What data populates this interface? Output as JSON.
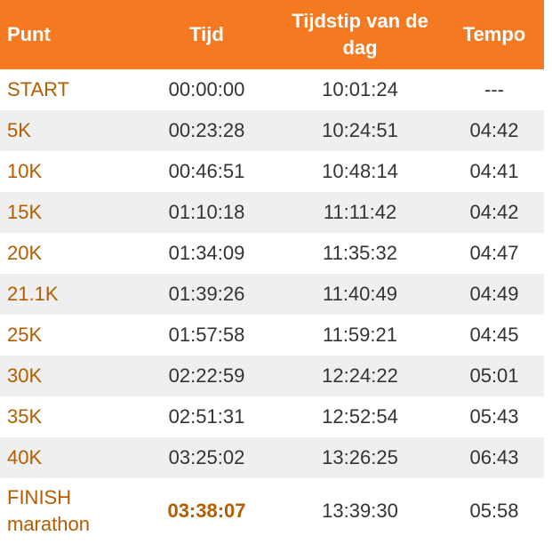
{
  "table": {
    "header": [
      "Punt",
      "Tijd",
      "Tijdstip van de dag",
      "Tempo"
    ],
    "rows": [
      [
        "START",
        "00:00:00",
        "10:01:24",
        "---"
      ],
      [
        "5K",
        "00:23:28",
        "10:24:51",
        "04:42"
      ],
      [
        "10K",
        "00:46:51",
        "10:48:14",
        "04:41"
      ],
      [
        "15K",
        "01:10:18",
        "11:11:42",
        "04:42"
      ],
      [
        "20K",
        "01:34:09",
        "11:35:32",
        "04:47"
      ],
      [
        "21.1K",
        "01:39:26",
        "11:40:49",
        "04:49"
      ],
      [
        "25K",
        "01:57:58",
        "11:59:21",
        "04:45"
      ],
      [
        "30K",
        "02:22:59",
        "12:24:22",
        "05:01"
      ],
      [
        "35K",
        "02:51:31",
        "12:52:54",
        "05:43"
      ],
      [
        "40K",
        "03:25:02",
        "13:26:25",
        "06:43"
      ],
      [
        "FINISH marathon",
        "03:38:07",
        "13:39:30",
        "05:58"
      ]
    ]
  }
}
